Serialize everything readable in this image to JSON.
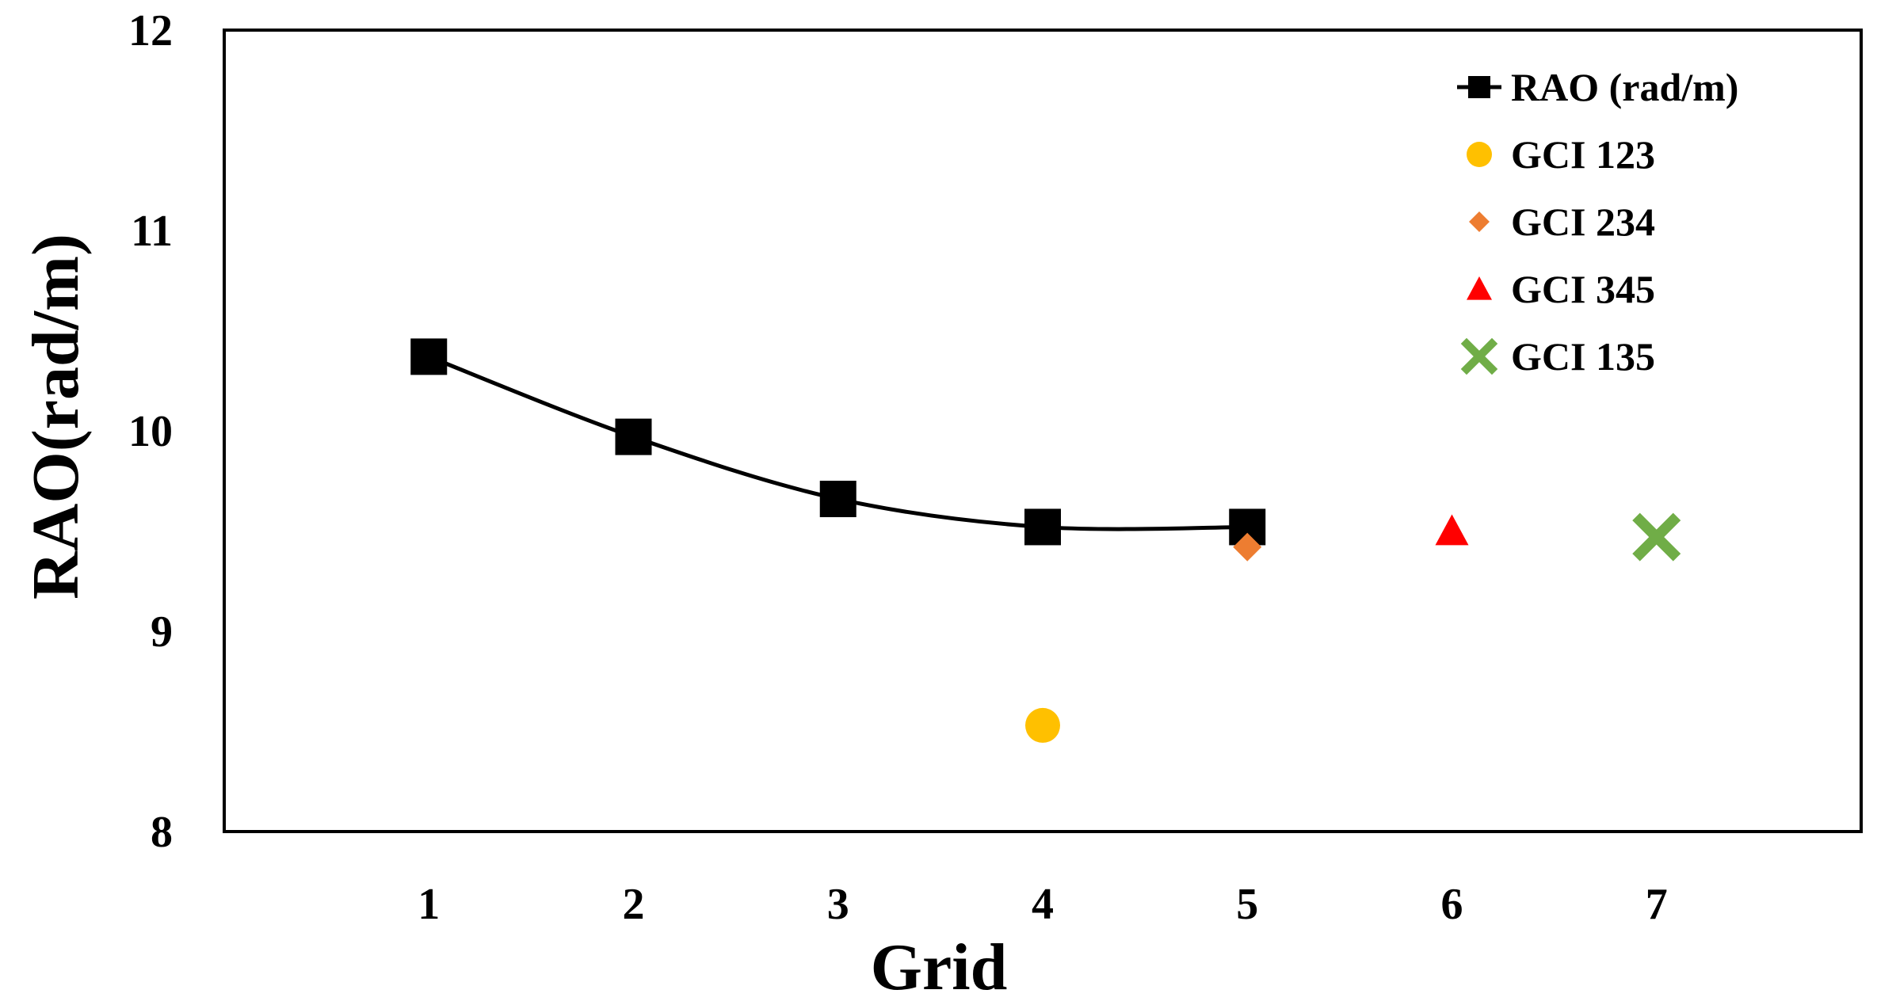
{
  "chart_data": {
    "type": "scatter",
    "xlabel": "Grid",
    "ylabel": "RAO(rad/m)",
    "xlim": [
      0,
      8
    ],
    "ylim": [
      8,
      12
    ],
    "x_ticks": [
      "1",
      "2",
      "3",
      "4",
      "5",
      "6",
      "7"
    ],
    "y_ticks": [
      "8",
      "9",
      "10",
      "11",
      "12"
    ],
    "grid": false,
    "legend_position": "top-right",
    "series": [
      {
        "name": "RAO (rad/m)",
        "marker": "square",
        "line": true,
        "color": "#000000",
        "x": [
          1,
          2,
          3,
          4,
          5
        ],
        "y": [
          10.37,
          9.97,
          9.66,
          9.52,
          9.52
        ]
      },
      {
        "name": "GCI 123",
        "marker": "circle",
        "line": false,
        "color": "#FFC000",
        "x": [
          4
        ],
        "y": [
          8.53
        ]
      },
      {
        "name": "GCI 234",
        "marker": "diamond",
        "line": false,
        "color": "#ED7D31",
        "x": [
          5
        ],
        "y": [
          9.42
        ]
      },
      {
        "name": "GCI 345",
        "marker": "triangle",
        "line": false,
        "color": "#FF0000",
        "x": [
          6
        ],
        "y": [
          9.5
        ]
      },
      {
        "name": "GCI 135",
        "marker": "x",
        "line": false,
        "color": "#70AD47",
        "x": [
          7
        ],
        "y": [
          9.47
        ]
      }
    ]
  }
}
